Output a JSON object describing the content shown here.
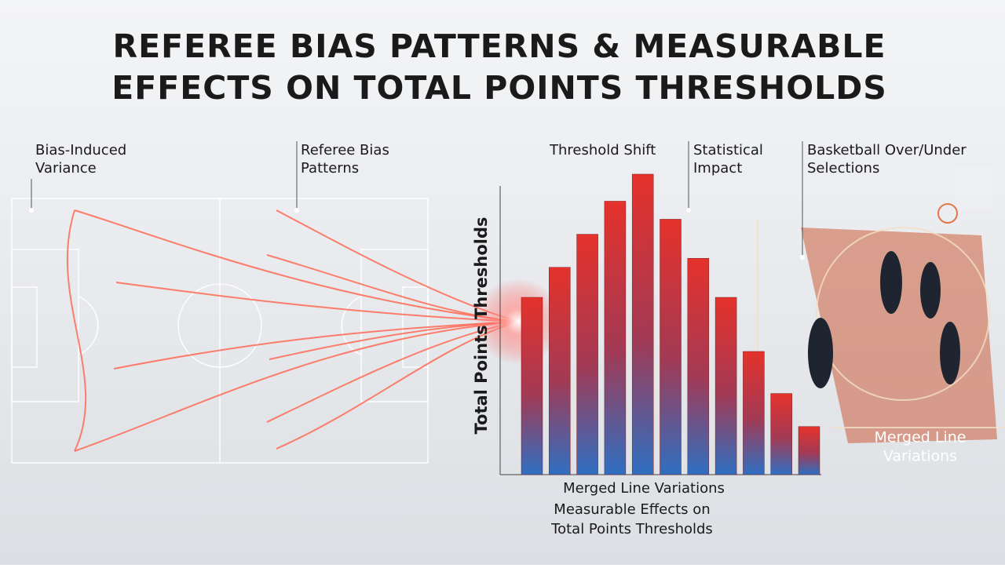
{
  "title_lines": [
    "REFEREE BIAS PATTERNS & MEASURABLE",
    "EFFECTS ON TOTAL POINTS THRESHOLDS"
  ],
  "annotations": {
    "bias_variance": [
      "Bias-Induced",
      "Variance"
    ],
    "referee_patterns": [
      "Referee Bias",
      "Patterns"
    ],
    "threshold_shift": "Threshold Shift",
    "statistical_impact": [
      "Statistical",
      "Impact"
    ],
    "basketball_selections": [
      "Basketball Over/Under",
      "Selections"
    ],
    "court_label": [
      "Merged Line",
      "Variations"
    ]
  },
  "chart_data": {
    "type": "bar",
    "ylabel": "Total Points Thresholds",
    "xlabel": "Merged Line Variations",
    "values": [
      59,
      69,
      80,
      91,
      100,
      85,
      72,
      59,
      41,
      27,
      16
    ],
    "ylim": [
      0,
      100
    ]
  },
  "caption_lines": [
    "Measurable Effects on",
    "Total Points Thresholds"
  ]
}
